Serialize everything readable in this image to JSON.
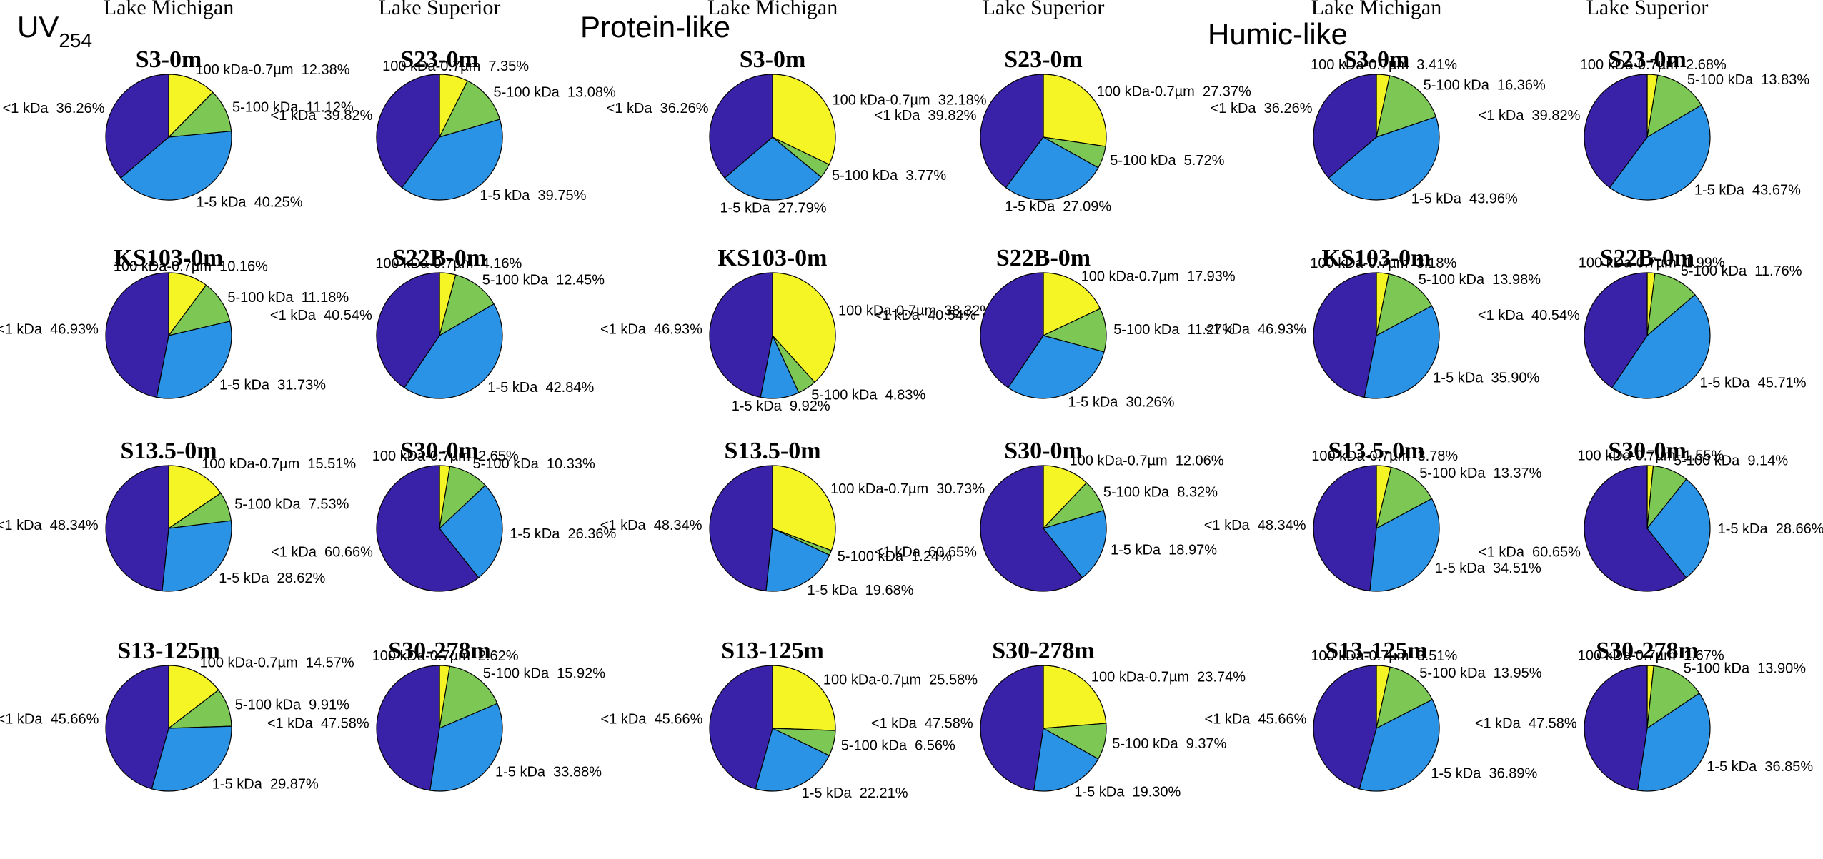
{
  "chart_data": [
    {
      "type": "pie",
      "section": "UV",
      "section_subscript": "254",
      "column_headers": [
        "Lake Michigan",
        "Lake Superior"
      ],
      "slice_order": [
        "100 kDa-0.7µm",
        "5-100 kDa",
        "1-5 kDa",
        "<1 kDa"
      ],
      "colors": [
        "#f5f525",
        "#7dc855",
        "#2a93e6",
        "#3a22a8"
      ],
      "pies": [
        {
          "title": "S3-0m",
          "lake": "Lake Michigan",
          "values": [
            12.38,
            11.12,
            40.25,
            36.26
          ]
        },
        {
          "title": "S23-0m",
          "lake": "Lake Superior",
          "values": [
            7.35,
            13.08,
            39.75,
            39.82
          ]
        },
        {
          "title": "KS103-0m",
          "lake": "Lake Michigan",
          "values": [
            10.16,
            11.18,
            31.73,
            46.93
          ]
        },
        {
          "title": "S22B-0m",
          "lake": "Lake Superior",
          "values": [
            4.16,
            12.45,
            42.84,
            40.54
          ]
        },
        {
          "title": "S13.5-0m",
          "lake": "Lake Michigan",
          "values": [
            15.51,
            7.53,
            28.62,
            48.34
          ]
        },
        {
          "title": "S30-0m",
          "lake": "Lake Superior",
          "values": [
            2.65,
            10.33,
            26.36,
            60.66
          ]
        },
        {
          "title": "S13-125m",
          "lake": "Lake Michigan",
          "values": [
            14.57,
            9.91,
            29.87,
            45.66
          ]
        },
        {
          "title": "S30-278m",
          "lake": "Lake Superior",
          "values": [
            2.62,
            15.92,
            33.88,
            47.58
          ]
        }
      ]
    },
    {
      "type": "pie",
      "section": "Protein-like",
      "section_subscript": "",
      "column_headers": [
        "Lake Michigan",
        "Lake Superior"
      ],
      "slice_order": [
        "100 kDa-0.7µm",
        "5-100 kDa",
        "1-5 kDa",
        "<1 kDa"
      ],
      "colors": [
        "#f5f525",
        "#7dc855",
        "#2a93e6",
        "#3a22a8"
      ],
      "pies": [
        {
          "title": "S3-0m",
          "lake": "Lake Michigan",
          "values": [
            32.18,
            3.77,
            27.79,
            36.26
          ]
        },
        {
          "title": "S23-0m",
          "lake": "Lake Superior",
          "values": [
            27.37,
            5.72,
            27.09,
            39.82
          ]
        },
        {
          "title": "KS103-0m",
          "lake": "Lake Michigan",
          "values": [
            38.32,
            4.83,
            9.92,
            46.93
          ]
        },
        {
          "title": "S22B-0m",
          "lake": "Lake Superior",
          "values": [
            17.93,
            11.27,
            30.26,
            40.54
          ]
        },
        {
          "title": "S13.5-0m",
          "lake": "Lake Michigan",
          "values": [
            30.73,
            1.24,
            19.68,
            48.34
          ]
        },
        {
          "title": "S30-0m",
          "lake": "Lake Superior",
          "values": [
            12.06,
            8.32,
            18.97,
            60.65
          ]
        },
        {
          "title": "S13-125m",
          "lake": "Lake Michigan",
          "values": [
            25.58,
            6.56,
            22.21,
            45.66
          ]
        },
        {
          "title": "S30-278m",
          "lake": "Lake Superior",
          "values": [
            23.74,
            9.37,
            19.3,
            47.58
          ]
        }
      ]
    },
    {
      "type": "pie",
      "section": "Humic-like",
      "section_subscript": "",
      "column_headers": [
        "Lake Michigan",
        "Lake Superior"
      ],
      "slice_order": [
        "100 kDa-0.7µm",
        "5-100 kDa",
        "1-5 kDa",
        "<1 kDa"
      ],
      "colors": [
        "#f5f525",
        "#7dc855",
        "#2a93e6",
        "#3a22a8"
      ],
      "pies": [
        {
          "title": "S3-0m",
          "lake": "Lake Michigan",
          "values": [
            3.41,
            16.36,
            43.96,
            36.26
          ]
        },
        {
          "title": "S23-0m",
          "lake": "Lake Superior",
          "values": [
            2.68,
            13.83,
            43.67,
            39.82
          ]
        },
        {
          "title": "KS103-0m",
          "lake": "Lake Michigan",
          "values": [
            3.18,
            13.98,
            35.9,
            46.93
          ]
        },
        {
          "title": "S22B-0m",
          "lake": "Lake Superior",
          "values": [
            1.99,
            11.76,
            45.71,
            40.54
          ]
        },
        {
          "title": "S13.5-0m",
          "lake": "Lake Michigan",
          "values": [
            3.78,
            13.37,
            34.51,
            48.34
          ]
        },
        {
          "title": "S30-0m",
          "lake": "Lake Superior",
          "values": [
            1.55,
            9.14,
            28.66,
            60.65
          ]
        },
        {
          "title": "S13-125m",
          "lake": "Lake Michigan",
          "values": [
            3.51,
            13.95,
            36.89,
            45.66
          ]
        },
        {
          "title": "S30-278m",
          "lake": "Lake Superior",
          "values": [
            1.67,
            13.9,
            36.85,
            47.58
          ]
        }
      ]
    }
  ]
}
